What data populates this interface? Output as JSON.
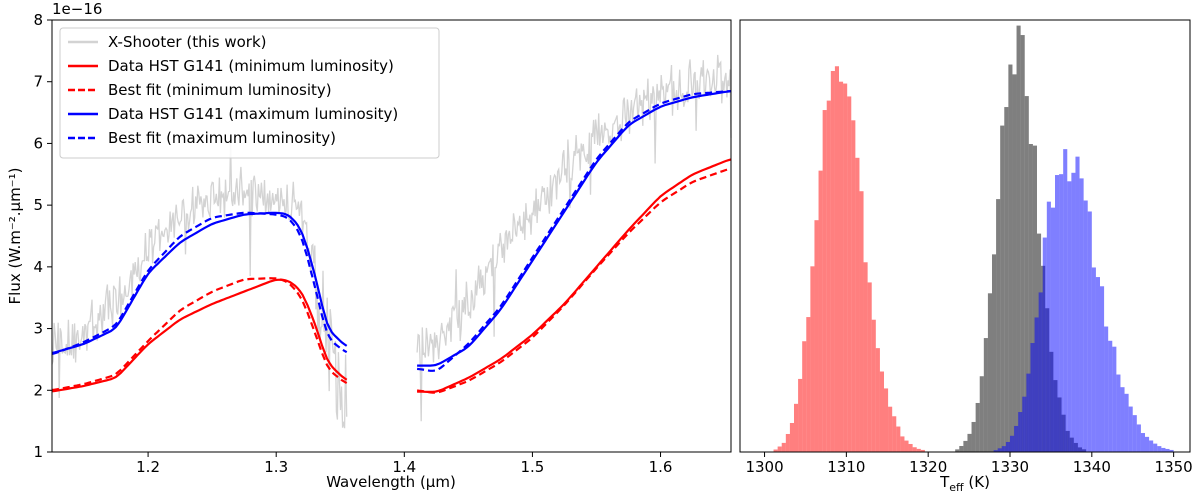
{
  "chart_data": [
    {
      "type": "line",
      "panel": "left",
      "xlabel": "Wavelength (µm)",
      "ylabel": "Flux (W.m⁻².µm⁻¹)",
      "exponent_label": "1e−16",
      "xlim": [
        1.125,
        1.655
      ],
      "ylim": [
        1,
        8
      ],
      "xticks": [
        1.2,
        1.3,
        1.4,
        1.5,
        1.6
      ],
      "xtick_labels": [
        "1.2",
        "1.3",
        "1.4",
        "1.5",
        "1.6"
      ],
      "yticks": [
        1,
        2,
        3,
        4,
        5,
        6,
        7,
        8
      ],
      "ytick_labels": [
        "1",
        "2",
        "3",
        "4",
        "5",
        "6",
        "7",
        "8"
      ],
      "legend_position": "top-left",
      "legend": [
        {
          "label": "X-Shooter (this work)",
          "color": "#d3d3d3",
          "style": "solid"
        },
        {
          "label": "Data HST G141 (minimum luminosity)",
          "color": "#ff0000",
          "style": "solid"
        },
        {
          "label": "Best fit (minimum luminosity)",
          "color": "#ff0000",
          "style": "dashed"
        },
        {
          "label": "Data HST G141 (maximum luminosity)",
          "color": "#0000ff",
          "style": "solid"
        },
        {
          "label": "Best fit (maximum luminosity)",
          "color": "#0000ff",
          "style": "dashed"
        }
      ],
      "series": [
        {
          "name": "X-Shooter (this work)",
          "color": "#d3d3d3",
          "style": "solid",
          "noisy": true,
          "segments": [
            {
              "x": [
                1.125,
                1.15,
                1.175,
                1.2,
                1.225,
                1.25,
                1.275,
                1.3,
                1.315,
                1.325,
                1.335,
                1.345,
                1.355
              ],
              "y": [
                2.7,
                2.9,
                3.4,
                4.3,
                4.8,
                5.1,
                5.2,
                5.1,
                5.1,
                4.4,
                3.3,
                2.5,
                1.9
              ]
            },
            {
              "x": [
                1.41,
                1.425,
                1.45,
                1.475,
                1.5,
                1.525,
                1.55,
                1.575,
                1.6,
                1.625,
                1.655
              ],
              "y": [
                2.7,
                2.8,
                3.5,
                4.3,
                4.9,
                5.6,
                6.1,
                6.5,
                6.8,
                7.0,
                7.1
              ]
            }
          ]
        },
        {
          "name": "Data HST G141 (minimum luminosity)",
          "color": "#ff0000",
          "style": "solid",
          "segments": [
            {
              "x": [
                1.125,
                1.15,
                1.175,
                1.2,
                1.225,
                1.25,
                1.275,
                1.3,
                1.31,
                1.32,
                1.33,
                1.34,
                1.355
              ],
              "y": [
                1.98,
                2.07,
                2.2,
                2.75,
                3.15,
                3.4,
                3.6,
                3.8,
                3.78,
                3.6,
                3.1,
                2.45,
                2.15
              ]
            },
            {
              "x": [
                1.41,
                1.425,
                1.45,
                1.475,
                1.5,
                1.525,
                1.55,
                1.575,
                1.6,
                1.625,
                1.655
              ],
              "y": [
                1.98,
                1.97,
                2.2,
                2.5,
                2.9,
                3.4,
                4.0,
                4.6,
                5.15,
                5.5,
                5.75
              ]
            }
          ]
        },
        {
          "name": "Best fit (minimum luminosity)",
          "color": "#ff0000",
          "style": "dashed",
          "segments": [
            {
              "x": [
                1.125,
                1.15,
                1.175,
                1.2,
                1.225,
                1.25,
                1.275,
                1.3,
                1.31,
                1.32,
                1.33,
                1.34,
                1.355
              ],
              "y": [
                2.0,
                2.1,
                2.25,
                2.8,
                3.3,
                3.6,
                3.8,
                3.82,
                3.75,
                3.5,
                2.95,
                2.35,
                2.1
              ]
            },
            {
              "x": [
                1.41,
                1.425,
                1.45,
                1.475,
                1.5,
                1.525,
                1.55,
                1.575,
                1.6,
                1.625,
                1.655
              ],
              "y": [
                2.0,
                1.95,
                2.15,
                2.45,
                2.85,
                3.38,
                3.98,
                4.55,
                5.05,
                5.38,
                5.6
              ]
            }
          ]
        },
        {
          "name": "Data HST G141 (maximum luminosity)",
          "color": "#0000ff",
          "style": "solid",
          "segments": [
            {
              "x": [
                1.125,
                1.15,
                1.175,
                1.2,
                1.225,
                1.25,
                1.275,
                1.3,
                1.31,
                1.32,
                1.33,
                1.34,
                1.355
              ],
              "y": [
                2.6,
                2.75,
                3.0,
                3.9,
                4.4,
                4.7,
                4.85,
                4.88,
                4.85,
                4.6,
                3.9,
                3.0,
                2.7
              ]
            },
            {
              "x": [
                1.41,
                1.425,
                1.45,
                1.475,
                1.5,
                1.525,
                1.55,
                1.575,
                1.6,
                1.625,
                1.655
              ],
              "y": [
                2.4,
                2.4,
                2.7,
                3.3,
                4.1,
                4.9,
                5.7,
                6.3,
                6.6,
                6.75,
                6.85
              ]
            }
          ]
        },
        {
          "name": "Best fit (maximum luminosity)",
          "color": "#0000ff",
          "style": "dashed",
          "segments": [
            {
              "x": [
                1.125,
                1.15,
                1.175,
                1.2,
                1.225,
                1.25,
                1.275,
                1.3,
                1.31,
                1.32,
                1.33,
                1.34,
                1.355
              ],
              "y": [
                2.58,
                2.78,
                3.05,
                3.95,
                4.5,
                4.8,
                4.88,
                4.85,
                4.8,
                4.5,
                3.7,
                2.85,
                2.6
              ]
            },
            {
              "x": [
                1.41,
                1.425,
                1.45,
                1.475,
                1.5,
                1.525,
                1.55,
                1.575,
                1.6,
                1.625,
                1.655
              ],
              "y": [
                2.35,
                2.3,
                2.75,
                3.35,
                4.15,
                4.95,
                5.75,
                6.35,
                6.65,
                6.8,
                6.85
              ]
            }
          ]
        }
      ]
    },
    {
      "type": "histogram",
      "panel": "right",
      "xlabel": "T",
      "xlabel_sub": "eff",
      "xlabel_suffix": " (K)",
      "xlim": [
        1297,
        1352
      ],
      "xticks": [
        1300,
        1310,
        1320,
        1330,
        1340,
        1350
      ],
      "xtick_labels": [
        "1300",
        "1310",
        "1320",
        "1330",
        "1340",
        "1350"
      ],
      "ymax": 1.0,
      "bin_width": 0.5,
      "series": [
        {
          "name": "minimum luminosity",
          "color": "#ff0000",
          "alpha": 0.5,
          "mean": 1308.6,
          "sd_left": 2.3,
          "sd_right": 3.3,
          "amp": 0.95,
          "noise_seed": 3
        },
        {
          "name": "X-Shooter",
          "color": "#000000",
          "alpha": 0.5,
          "mean": 1330.8,
          "sd_left": 2.3,
          "sd_right": 2.6,
          "amp": 1.0,
          "noise_seed": 7
        },
        {
          "name": "maximum luminosity",
          "color": "#0000ff",
          "alpha": 0.5,
          "mean": 1336.5,
          "sd_left": 2.6,
          "sd_right": 4.2,
          "amp": 0.73,
          "noise_seed": 11
        }
      ]
    }
  ]
}
